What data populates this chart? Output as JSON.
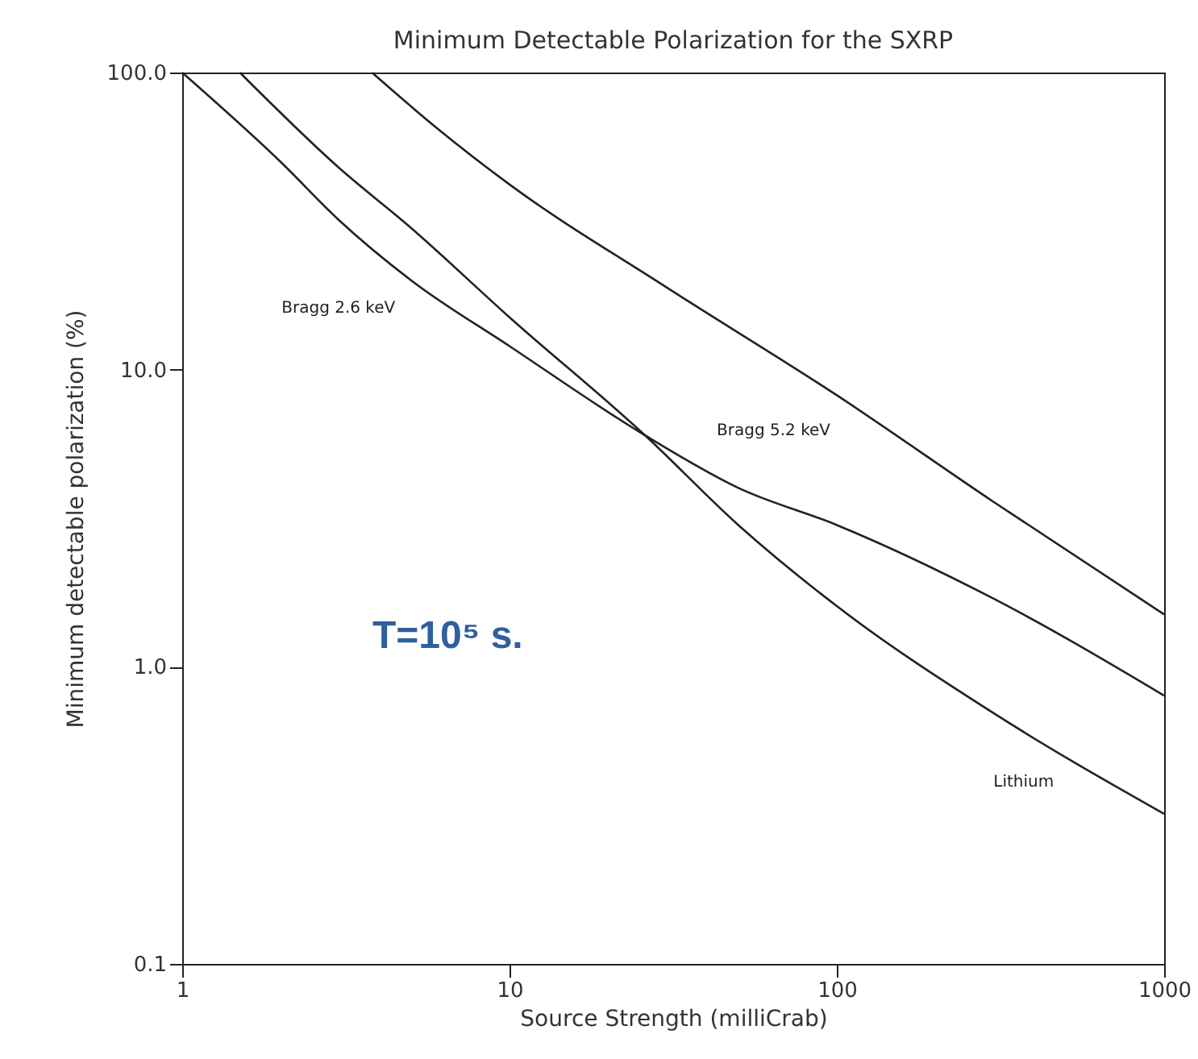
{
  "chart_data": {
    "type": "line",
    "title": "Minimum Detectable Polarization for the SXRP",
    "xlabel": "Source Strength (milliCrab)",
    "ylabel": "Minimum detectable polarization (%)",
    "log": "xy",
    "xlim": [
      1,
      1000
    ],
    "ylim": [
      0.1,
      100
    ],
    "xticks": [
      1,
      10,
      100,
      1000
    ],
    "yticks": [
      {
        "value": 0.1,
        "label": "0.1"
      },
      {
        "value": 1,
        "label": "1.0"
      },
      {
        "value": 10,
        "label": "10.0"
      },
      {
        "value": 100,
        "label": "100.0"
      }
    ],
    "grid": false,
    "legend": false,
    "marker": "none",
    "line_style": "solid",
    "series": [
      {
        "name": "Bragg 2.6 keV",
        "color": "#222222",
        "x": [
          1,
          2,
          3,
          5,
          10,
          26,
          50,
          100,
          300,
          1000
        ],
        "values": [
          100,
          50,
          32,
          20,
          12,
          6,
          4,
          3.0,
          1.7,
          0.8
        ]
      },
      {
        "name": "Lithium",
        "color": "#222222",
        "x": [
          1.5,
          3,
          5,
          10,
          26,
          50,
          100,
          300,
          1000
        ],
        "values": [
          100,
          48,
          30,
          15,
          6,
          3,
          1.6,
          0.7,
          0.32
        ]
      },
      {
        "name": "Bragg 5.2 keV",
        "color": "#222222",
        "x": [
          3.8,
          6,
          10,
          30,
          100,
          300,
          1000
        ],
        "values": [
          100,
          65,
          42,
          19,
          8.2,
          3.6,
          1.5
        ]
      }
    ],
    "annotations": [
      "T=10⁵ s."
    ]
  }
}
